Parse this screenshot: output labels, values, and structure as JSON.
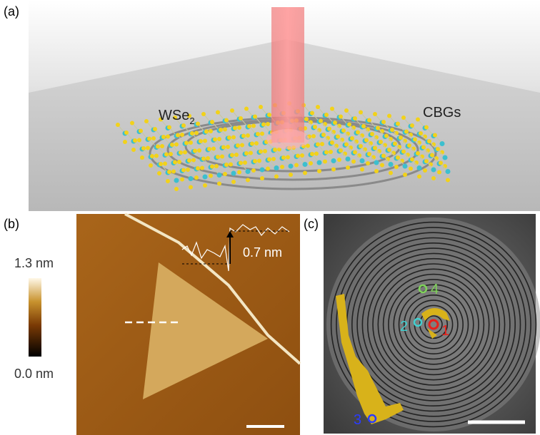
{
  "panel_a": {
    "label": "(a)",
    "material": {
      "text": "WSe",
      "subscript": "2"
    },
    "rings_label": "CBGs"
  },
  "panel_b": {
    "label": "(b)",
    "colorbar_max": "1.3 nm",
    "colorbar_min": "0.0 nm",
    "step_height": "0.7 nm"
  },
  "panel_c": {
    "label": "(c)",
    "markers": [
      "1",
      "2",
      "3",
      "4"
    ]
  }
}
